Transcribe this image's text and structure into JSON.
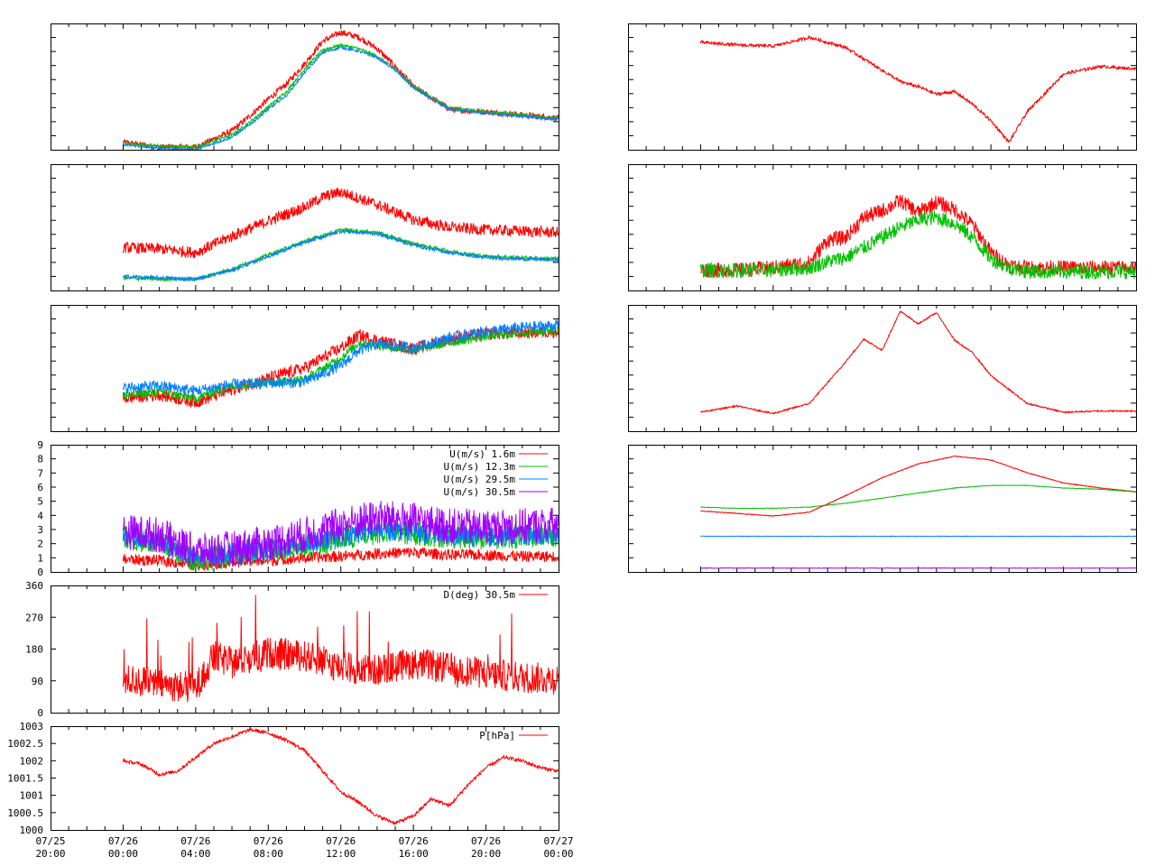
{
  "x_tick_labels": [
    {
      "date": "07/25",
      "time": "20:00"
    },
    {
      "date": "07/26",
      "time": "00:00"
    },
    {
      "date": "07/26",
      "time": "04:00"
    },
    {
      "date": "07/26",
      "time": "08:00"
    },
    {
      "date": "07/26",
      "time": "12:00"
    },
    {
      "date": "07/26",
      "time": "16:00"
    },
    {
      "date": "07/26",
      "time": "20:00"
    },
    {
      "date": "07/27",
      "time": "00:00"
    }
  ],
  "colors": {
    "red": "#ff0000",
    "green": "#00c000",
    "blue": "#0080ff",
    "purple": "#a000ff",
    "axis": "#000000"
  },
  "chart_data": [
    {
      "id": "temp",
      "type": "line",
      "xlim": [
        0,
        28
      ],
      "ylim": [
        0,
        10
      ],
      "series": [
        {
          "color": "red",
          "x": [
            4,
            6,
            8,
            10,
            11,
            12,
            13,
            14,
            15,
            16,
            17,
            18,
            19,
            20,
            22,
            24,
            28
          ],
          "y": [
            0.6,
            0.2,
            0.2,
            1.5,
            2.7,
            4,
            5.2,
            6.8,
            8.6,
            9.3,
            8.9,
            8.0,
            6.6,
            5.0,
            3.2,
            3.0,
            2.5
          ]
        },
        {
          "color": "green",
          "x": [
            4,
            6,
            8,
            10,
            11,
            12,
            13,
            14,
            15,
            16,
            17,
            18,
            19,
            20,
            22,
            24,
            28
          ],
          "y": [
            0.5,
            0.3,
            0.2,
            1.2,
            2.2,
            3.4,
            4.6,
            6.4,
            7.9,
            8.3,
            8.0,
            7.4,
            6.4,
            5.0,
            3.3,
            3.0,
            2.5
          ]
        },
        {
          "color": "blue",
          "x": [
            4,
            6,
            8,
            10,
            11,
            12,
            13,
            14,
            15,
            16,
            17,
            18,
            19,
            20,
            22,
            24,
            28
          ],
          "y": [
            0.4,
            0.1,
            0.0,
            1.0,
            2.0,
            3.2,
            4.3,
            6.1,
            7.7,
            8.1,
            7.8,
            7.3,
            6.3,
            4.9,
            3.2,
            2.9,
            2.4
          ]
        }
      ]
    },
    {
      "id": "humid",
      "type": "line",
      "xlim": [
        0,
        28
      ],
      "ylim": [
        0,
        10
      ],
      "series": [
        {
          "color": "red",
          "x": [
            4,
            6,
            8,
            10,
            12,
            14,
            15,
            16,
            18,
            20,
            22,
            24,
            28
          ],
          "y": [
            3.4,
            3.3,
            3.0,
            4.3,
            5.5,
            6.6,
            7.4,
            7.8,
            6.8,
            5.6,
            5.0,
            4.8,
            4.6
          ]
        },
        {
          "color": "green",
          "x": [
            4,
            6,
            8,
            10,
            12,
            14,
            16,
            18,
            20,
            22,
            24,
            28
          ],
          "y": [
            1.0,
            0.9,
            0.9,
            1.7,
            2.8,
            3.9,
            4.8,
            4.6,
            3.7,
            3.1,
            2.7,
            2.5
          ]
        },
        {
          "color": "blue",
          "x": [
            4,
            6,
            8,
            10,
            12,
            14,
            16,
            18,
            20,
            22,
            24,
            28
          ],
          "y": [
            1.1,
            1.0,
            0.9,
            1.6,
            2.7,
            3.8,
            4.7,
            4.5,
            3.6,
            3.0,
            2.6,
            2.4
          ]
        }
      ]
    },
    {
      "id": "pa",
      "type": "line",
      "xlim": [
        0,
        28
      ],
      "ylim": [
        0,
        10
      ],
      "series": [
        {
          "color": "red",
          "x": [
            4,
            6,
            8,
            10,
            12,
            14,
            16,
            17,
            18,
            20,
            22,
            24,
            26,
            28
          ],
          "y": [
            2.6,
            2.9,
            2.3,
            3.3,
            4.2,
            5.0,
            6.6,
            7.6,
            7.2,
            6.5,
            7.3,
            7.7,
            7.8,
            7.9
          ]
        },
        {
          "color": "green",
          "x": [
            4,
            6,
            8,
            10,
            12,
            14,
            16,
            17,
            18,
            20,
            22,
            24,
            26,
            28
          ],
          "y": [
            2.8,
            3.1,
            2.6,
            3.6,
            3.9,
            4.1,
            5.8,
            7.0,
            6.8,
            6.4,
            7.0,
            7.5,
            7.8,
            8.0
          ]
        },
        {
          "color": "blue",
          "x": [
            4,
            6,
            8,
            10,
            12,
            14,
            16,
            17,
            18,
            20,
            22,
            24,
            26,
            28
          ],
          "y": [
            3.4,
            3.6,
            3.2,
            3.7,
            3.8,
            3.9,
            5.2,
            6.4,
            6.9,
            6.6,
            7.4,
            7.9,
            8.2,
            8.4
          ]
        }
      ]
    },
    {
      "id": "speed",
      "type": "line",
      "xlim": [
        0,
        28
      ],
      "ylim": [
        0,
        9
      ],
      "yticks": [
        "0",
        "1",
        "2",
        "3",
        "4",
        "5",
        "6",
        "7",
        "8",
        "9"
      ],
      "series": [
        {
          "name": "U(m/s)  1.6m",
          "color": "red",
          "x": [
            4,
            6,
            8,
            10,
            12,
            14,
            16,
            18,
            20,
            22,
            24,
            26,
            28
          ],
          "y": [
            0.7,
            0.6,
            0.3,
            0.5,
            0.6,
            0.8,
            0.9,
            1.1,
            1.2,
            1.0,
            1.0,
            0.9,
            0.9
          ]
        },
        {
          "name": "U(m/s) 12.3m",
          "color": "green",
          "x": [
            4,
            6,
            8,
            10,
            12,
            14,
            16,
            18,
            20,
            22,
            24,
            26,
            28
          ],
          "y": [
            2.0,
            1.6,
            0.4,
            0.8,
            1.1,
            1.4,
            1.9,
            2.4,
            2.3,
            2.1,
            2.0,
            2.1,
            2.2
          ]
        },
        {
          "name": "U(m/s) 29.5m",
          "color": "blue",
          "x": [
            4,
            6,
            8,
            10,
            12,
            14,
            16,
            18,
            20,
            22,
            24,
            26,
            28
          ],
          "y": [
            2.1,
            1.8,
            0.6,
            0.9,
            1.2,
            1.6,
            2.1,
            2.6,
            2.5,
            2.2,
            2.1,
            2.2,
            2.3
          ]
        },
        {
          "name": "U(m/s) 30.5m",
          "color": "purple",
          "x": [
            4,
            6,
            8,
            10,
            12,
            14,
            16,
            18,
            20,
            22,
            24,
            26,
            28
          ],
          "y": [
            2.2,
            2.0,
            0.8,
            1.0,
            1.4,
            2.0,
            2.7,
            3.2,
            3.0,
            2.6,
            2.5,
            2.6,
            2.7
          ]
        }
      ]
    },
    {
      "id": "direction",
      "type": "line",
      "xlim": [
        0,
        28
      ],
      "ylim": [
        0,
        360
      ],
      "yticks": [
        "0",
        "90",
        "180",
        "270",
        "360"
      ],
      "series": [
        {
          "name": "D(deg)  30.5m",
          "color": "red",
          "x": [
            4,
            6,
            8,
            9,
            10,
            12,
            14,
            16,
            18,
            20,
            22,
            24,
            26,
            28
          ],
          "y": [
            95,
            80,
            70,
            160,
            140,
            170,
            160,
            130,
            120,
            140,
            125,
            110,
            100,
            95
          ]
        }
      ]
    },
    {
      "id": "pressure",
      "type": "line",
      "xlim": [
        0,
        28
      ],
      "ylim": [
        1000,
        1003
      ],
      "yticks": [
        "1000",
        "1000.5",
        "1001",
        "1001.5",
        "1002",
        "1002.5",
        "1003"
      ],
      "series": [
        {
          "name": "P[hPa]",
          "color": "red",
          "x": [
            4,
            5,
            6,
            7,
            8,
            9,
            10,
            11,
            12,
            13,
            14,
            15,
            16,
            17,
            18,
            19,
            20,
            21,
            22,
            23,
            24,
            25,
            26,
            27,
            28
          ],
          "y": [
            1002.0,
            1001.9,
            1001.6,
            1001.7,
            1002.1,
            1002.5,
            1002.7,
            1002.9,
            1002.8,
            1002.6,
            1002.3,
            1001.7,
            1001.1,
            1000.8,
            1000.4,
            1000.2,
            1000.4,
            1000.9,
            1000.7,
            1001.3,
            1001.8,
            1002.1,
            1002.0,
            1001.8,
            1001.7
          ]
        }
      ]
    },
    {
      "id": "right1",
      "type": "line",
      "xlim": [
        0,
        28
      ],
      "ylim": [
        0,
        10
      ],
      "series": [
        {
          "color": "red",
          "x": [
            4,
            6,
            8,
            10,
            12,
            14,
            15,
            16,
            17,
            18,
            19,
            20,
            21,
            22,
            24,
            26,
            28
          ],
          "y": [
            8.5,
            8.3,
            8.2,
            8.9,
            8.1,
            6.3,
            5.4,
            5.0,
            4.4,
            4.6,
            3.6,
            2.3,
            0.6,
            3.0,
            6.0,
            6.6,
            6.4
          ]
        }
      ]
    },
    {
      "id": "right2",
      "type": "line",
      "xlim": [
        0,
        28
      ],
      "ylim": [
        0,
        10
      ],
      "series": [
        {
          "color": "red",
          "x": [
            4,
            6,
            8,
            10,
            11,
            12,
            13,
            14,
            15,
            16,
            17,
            18,
            19,
            20,
            21,
            22,
            24,
            28
          ],
          "y": [
            1.6,
            1.6,
            1.8,
            2.2,
            4.0,
            4.2,
            5.8,
            6.3,
            7.1,
            6.2,
            7.0,
            6.4,
            5.2,
            3.0,
            2.0,
            1.8,
            1.8,
            1.8
          ]
        },
        {
          "color": "green",
          "x": [
            4,
            6,
            8,
            10,
            11,
            12,
            13,
            14,
            15,
            16,
            17,
            18,
            19,
            20,
            21,
            22,
            24,
            28
          ],
          "y": [
            1.6,
            1.6,
            1.6,
            1.8,
            2.3,
            2.6,
            3.4,
            4.2,
            5.0,
            5.6,
            5.8,
            5.3,
            4.2,
            2.5,
            1.8,
            1.5,
            1.5,
            1.5
          ]
        }
      ]
    },
    {
      "id": "right3",
      "type": "line",
      "xlim": [
        0,
        28
      ],
      "ylim": [
        0,
        10
      ],
      "series": [
        {
          "color": "red",
          "x": [
            4,
            6,
            8,
            10,
            12,
            13,
            14,
            15,
            16,
            17,
            18,
            19,
            20,
            22,
            24,
            26,
            28
          ],
          "y": [
            1.5,
            2.0,
            1.4,
            2.2,
            5.5,
            7.3,
            6.4,
            9.5,
            8.5,
            9.4,
            7.2,
            6.2,
            4.4,
            2.2,
            1.5,
            1.6,
            1.6
          ]
        }
      ]
    },
    {
      "id": "right4",
      "type": "line",
      "xlim": [
        0,
        28
      ],
      "ylim": [
        0,
        10
      ],
      "series": [
        {
          "color": "red",
          "x": [
            4,
            6,
            8,
            10,
            12,
            14,
            16,
            18,
            20,
            22,
            24,
            26,
            28
          ],
          "y": [
            4.8,
            4.6,
            4.4,
            4.7,
            6.0,
            7.4,
            8.5,
            9.1,
            8.8,
            7.8,
            7.0,
            6.6,
            6.3
          ]
        },
        {
          "color": "green",
          "x": [
            4,
            6,
            8,
            10,
            12,
            14,
            16,
            18,
            20,
            22,
            24,
            26,
            28
          ],
          "y": [
            5.1,
            5.0,
            5.0,
            5.1,
            5.4,
            5.8,
            6.2,
            6.6,
            6.8,
            6.8,
            6.6,
            6.5,
            6.3
          ]
        },
        {
          "color": "blue",
          "x": [
            4,
            8,
            12,
            16,
            20,
            24,
            28
          ],
          "y": [
            2.8,
            2.8,
            2.8,
            2.8,
            2.8,
            2.8,
            2.8
          ]
        },
        {
          "color": "purple",
          "x": [
            4,
            8,
            12,
            16,
            20,
            24,
            28
          ],
          "y": [
            0.3,
            0.3,
            0.3,
            0.3,
            0.3,
            0.3,
            0.3
          ]
        }
      ]
    }
  ]
}
